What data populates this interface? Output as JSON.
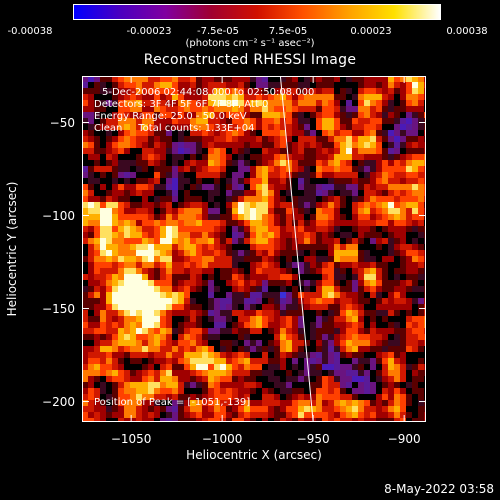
{
  "colorbar": {
    "ticks": [
      "-0.00038",
      "-0.00023",
      "-7.5e-05",
      "7.5e-05",
      "0.00023",
      "0.00038"
    ],
    "unit": "(photons cm⁻² s⁻¹ asec⁻²)",
    "stops": [
      "#0000ff",
      "#4a00c0",
      "#8000a0",
      "#a00030",
      "#d01000",
      "#ff5000",
      "#ffa000",
      "#ffe000",
      "#ffffff"
    ]
  },
  "chart_data": {
    "type": "heatmap",
    "title": "Reconstructed RHESSI Image",
    "xlabel": "Heliocentric X (arcsec)",
    "ylabel": "Heliocentric Y (arcsec)",
    "xlim": [
      -1077,
      -888
    ],
    "ylim": [
      -211,
      -25
    ],
    "xticks": [
      -1050,
      -1000,
      -950,
      -900
    ],
    "yticks": [
      -50,
      -100,
      -150,
      -200
    ],
    "xtick_labels": [
      "−1050",
      "−1000",
      "−950",
      "−900"
    ],
    "ytick_labels": [
      "−50",
      "−100",
      "−150",
      "−200"
    ],
    "peak": {
      "x": -1051,
      "y": -139
    },
    "limb_line": [
      [
        -968,
        -25
      ],
      [
        -950,
        -211
      ]
    ]
  },
  "annotations": {
    "time": "5-Dec-2006 02:44:08.000 to 02:50:08.000",
    "detectors": "Detectors: 3F 4F 5F 6F 7F 8F, Att 0",
    "energy": "Energy Range: 25.0 - 50.0 keV",
    "clean": "Clean     Total counts: 1.33E+04",
    "peak": "Position of Peak = [-1051,-139]"
  },
  "timestamp": "8-May-2022 03:58"
}
